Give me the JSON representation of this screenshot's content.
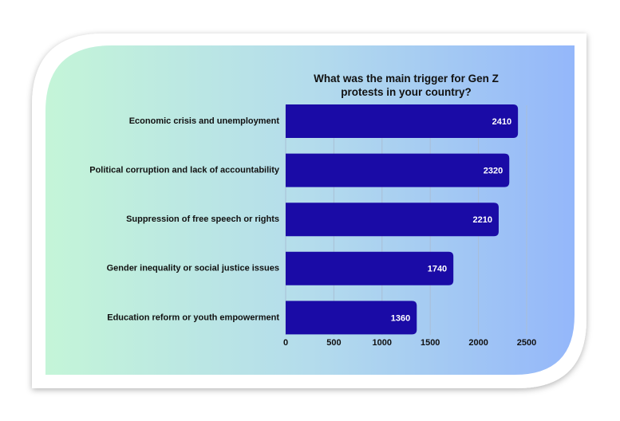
{
  "chart_data": {
    "type": "bar",
    "orientation": "horizontal",
    "title": "What was the main trigger for Gen Z protests in your country?",
    "categories": [
      "Economic crisis and unemployment",
      "Political corruption and lack of accountability",
      "Suppression of free speech or rights",
      "Gender inequality or social justice issues",
      "Education reform or youth empowerment"
    ],
    "values": [
      2410,
      2320,
      2210,
      1740,
      1360
    ],
    "color": "#1a0ba6",
    "xlim": [
      0,
      2500
    ],
    "xticks": [
      0,
      500,
      1000,
      1500,
      2000,
      2500
    ],
    "grid": true
  }
}
